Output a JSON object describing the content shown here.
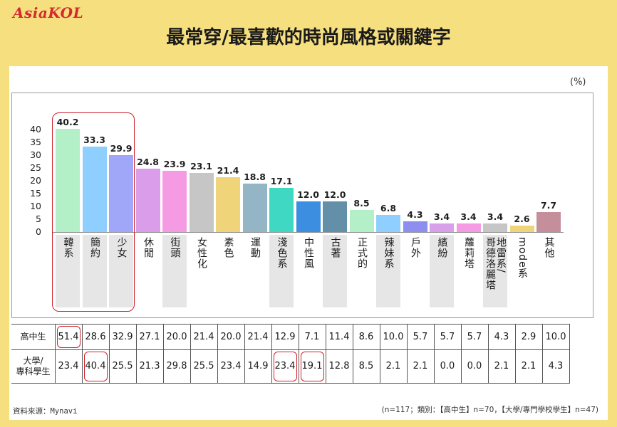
{
  "logo": "AsiaKOL",
  "title": "最常穿/最喜歡的時尚風格或關鍵字",
  "accent_color": "#D0202C",
  "chart_data": {
    "type": "bar",
    "ylabel": "(%)",
    "categories": [
      "韓系",
      "簡約",
      "少女",
      "休閒",
      "街頭",
      "女性化",
      "素色",
      "運動",
      "淺色系",
      "中性風",
      "古著",
      "正式的",
      "辣妹系",
      "戶外",
      "繽紛",
      "蘿莉塔",
      "地雷系/\n哥德洛麗塔",
      "mode系",
      "其他"
    ],
    "values": [
      40.2,
      33.3,
      29.9,
      24.8,
      23.9,
      23.1,
      21.4,
      18.8,
      17.1,
      12.0,
      12.0,
      8.5,
      6.8,
      4.3,
      3.4,
      3.4,
      3.4,
      2.6,
      7.7
    ],
    "ylim": [
      0,
      40
    ],
    "yticks": [
      40,
      35,
      30,
      25,
      20,
      15,
      10,
      5,
      0
    ],
    "colors": [
      "#B3F0C8",
      "#8ECFFF",
      "#A0A6F8",
      "#DA9DEA",
      "#F49BE3",
      "#C6C6C6",
      "#F0D47A",
      "#93B5C6",
      "#3ED8C3",
      "#3B8EE0",
      "#6390A8",
      "#B3F0C8",
      "#8ECFFF",
      "#8C8EF0",
      "#D9A0EA",
      "#F49BE3",
      "#C6C6C6",
      "#F0D47A",
      "#C48F9B"
    ]
  },
  "table": {
    "rows": [
      {
        "label": "高中生",
        "values": [
          "51.4",
          "28.6",
          "32.9",
          "27.1",
          "20.0",
          "21.4",
          "20.0",
          "21.4",
          "12.9",
          "7.1",
          "11.4",
          "8.6",
          "10.0",
          "5.7",
          "5.7",
          "5.7",
          "4.3",
          "2.9",
          "10.0"
        ]
      },
      {
        "label": "大學/\n專科學生",
        "values": [
          "23.4",
          "40.4",
          "25.5",
          "21.3",
          "29.8",
          "25.5",
          "23.4",
          "14.9",
          "23.4",
          "19.1",
          "12.8",
          "8.5",
          "2.1",
          "2.1",
          "0.0",
          "0.0",
          "2.1",
          "2.1",
          "4.3"
        ]
      }
    ]
  },
  "footer": {
    "source": "資料來源：Mynavi",
    "note": "(n=117；類別：【高中生】n=70，【大學/專門學校學生】n=47)"
  }
}
